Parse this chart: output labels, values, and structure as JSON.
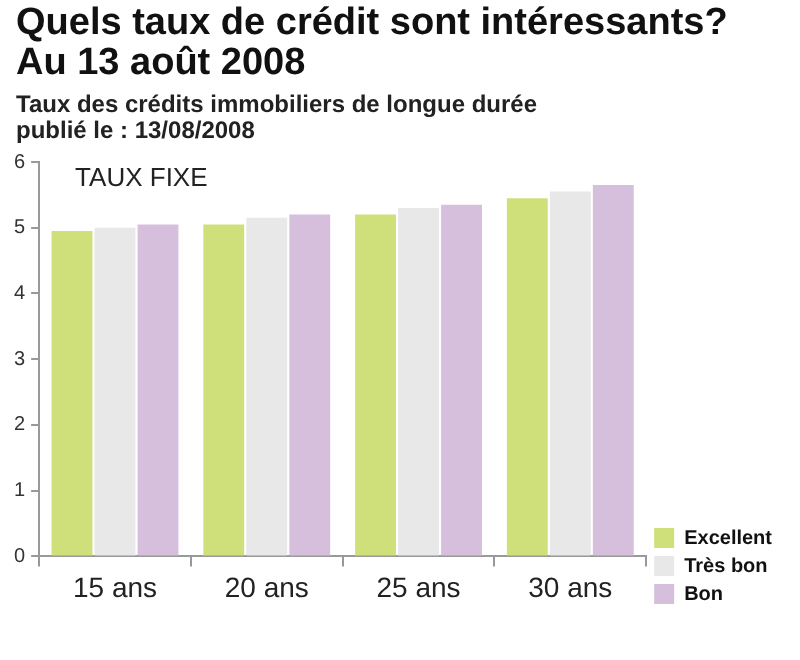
{
  "chart_data": {
    "type": "bar",
    "title": "Quels taux de crédit sont intéressants?\nAu 13 août 2008",
    "subtitle": "Taux des crédits immobiliers de longue durée\npublié le : 13/08/2008",
    "annotations": [
      "TAUX FIXE"
    ],
    "categories": [
      "15 ans",
      "20 ans",
      "25 ans",
      "30 ans"
    ],
    "series": [
      {
        "name": "Excellent",
        "color": "#cfdf7a",
        "values": [
          4.95,
          5.05,
          5.2,
          5.45
        ]
      },
      {
        "name": "Très bon",
        "color": "#e8e8e8",
        "values": [
          5.0,
          5.15,
          5.3,
          5.55
        ]
      },
      {
        "name": "Bon",
        "color": "#d5bfdc",
        "values": [
          5.05,
          5.2,
          5.35,
          5.65
        ]
      }
    ],
    "ylim": [
      0,
      6
    ],
    "yticks": [
      0,
      1,
      2,
      3,
      4,
      5,
      6
    ],
    "grid": false,
    "legend": "bottom right"
  }
}
